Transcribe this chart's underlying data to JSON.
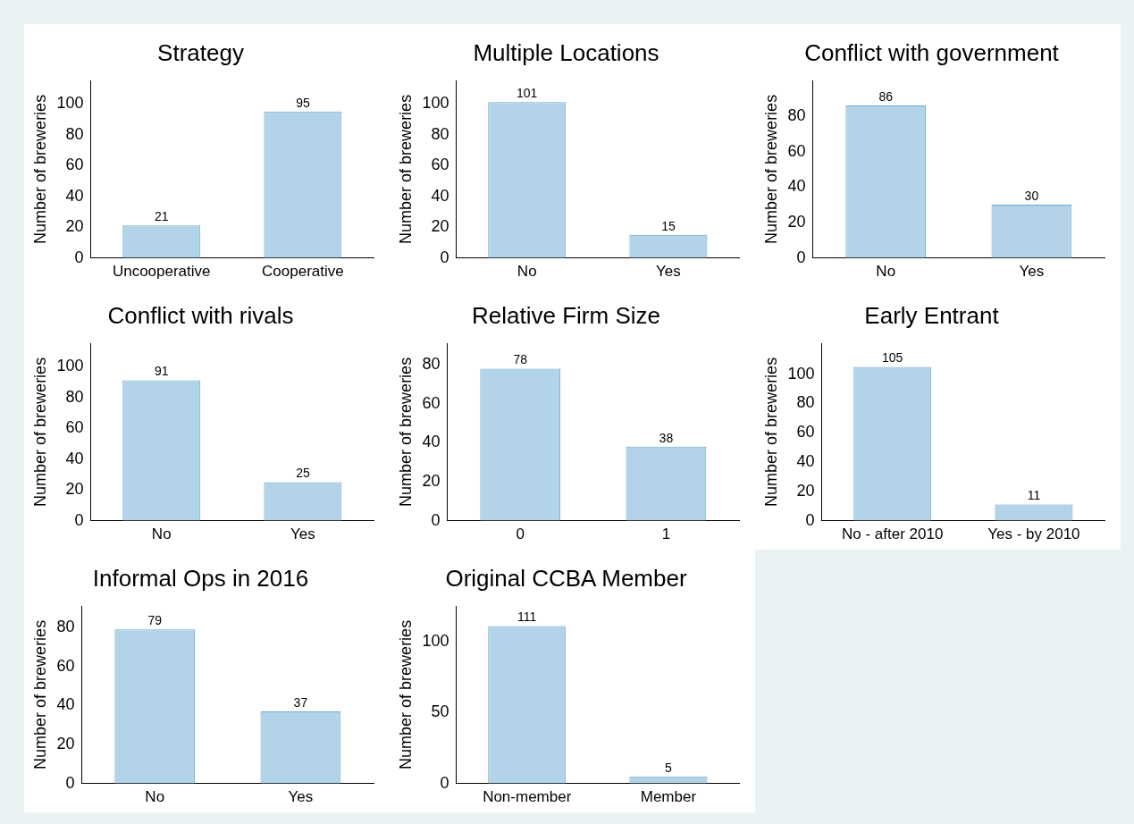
{
  "chart_data": [
    {
      "type": "bar",
      "title": "Strategy",
      "ylabel": "Number of breweries",
      "categories": [
        "Uncooperative",
        "Cooperative"
      ],
      "values": [
        21,
        95
      ],
      "color": "#b3d4e8",
      "ylim": [
        0,
        115
      ],
      "yticks": [
        0,
        20,
        40,
        60,
        80,
        100
      ],
      "data_labels": true
    },
    {
      "type": "bar",
      "title": "Multiple Locations",
      "ylabel": "Number of breweries",
      "categories": [
        "No",
        "Yes"
      ],
      "values": [
        101,
        15
      ],
      "color": "#b3d4e8",
      "ylim": [
        0,
        115
      ],
      "yticks": [
        0,
        20,
        40,
        60,
        80,
        100
      ],
      "data_labels": true
    },
    {
      "type": "bar",
      "title": "Conflict with government",
      "ylabel": "Number of breweries",
      "categories": [
        "No",
        "Yes"
      ],
      "values": [
        86,
        30
      ],
      "color": "#b3d4e8",
      "ylim": [
        0,
        100
      ],
      "yticks": [
        0,
        20,
        40,
        60,
        80
      ],
      "data_labels": true
    },
    {
      "type": "bar",
      "title": "Conflict with rivals",
      "ylabel": "Number of breweries",
      "categories": [
        "No",
        "Yes"
      ],
      "values": [
        91,
        25
      ],
      "color": "#b3d4e8",
      "ylim": [
        0,
        115
      ],
      "yticks": [
        0,
        20,
        40,
        60,
        80,
        100
      ],
      "data_labels": true
    },
    {
      "type": "bar",
      "title": "Relative Firm Size",
      "ylabel": "Number of breweries",
      "categories": [
        "0",
        "1"
      ],
      "values": [
        78,
        38
      ],
      "color": "#b3d4e8",
      "ylim": [
        0,
        91
      ],
      "yticks": [
        0,
        20,
        40,
        60,
        80
      ],
      "data_labels": true
    },
    {
      "type": "bar",
      "title": "Early Entrant",
      "ylabel": "Number of breweries",
      "categories": [
        "No - after 2010",
        "Yes - by 2010"
      ],
      "values": [
        105,
        11
      ],
      "color": "#b3d4e8",
      "ylim": [
        0,
        121
      ],
      "yticks": [
        0,
        20,
        40,
        60,
        80,
        100
      ],
      "data_labels": true
    },
    {
      "type": "bar",
      "title": "Informal Ops in 2016",
      "ylabel": "Number of breweries",
      "categories": [
        "No",
        "Yes"
      ],
      "values": [
        79,
        37
      ],
      "color": "#b3d4e8",
      "ylim": [
        0,
        91
      ],
      "yticks": [
        0,
        20,
        40,
        60,
        80
      ],
      "data_labels": true
    },
    {
      "type": "bar",
      "title": "Original CCBA Member",
      "ylabel": "Number of breweries",
      "categories": [
        "Non-member",
        "Member"
      ],
      "values": [
        111,
        5
      ],
      "color": "#b3d4e8",
      "ylim": [
        0,
        125
      ],
      "yticks": [
        0,
        50,
        100
      ],
      "data_labels": true
    }
  ]
}
